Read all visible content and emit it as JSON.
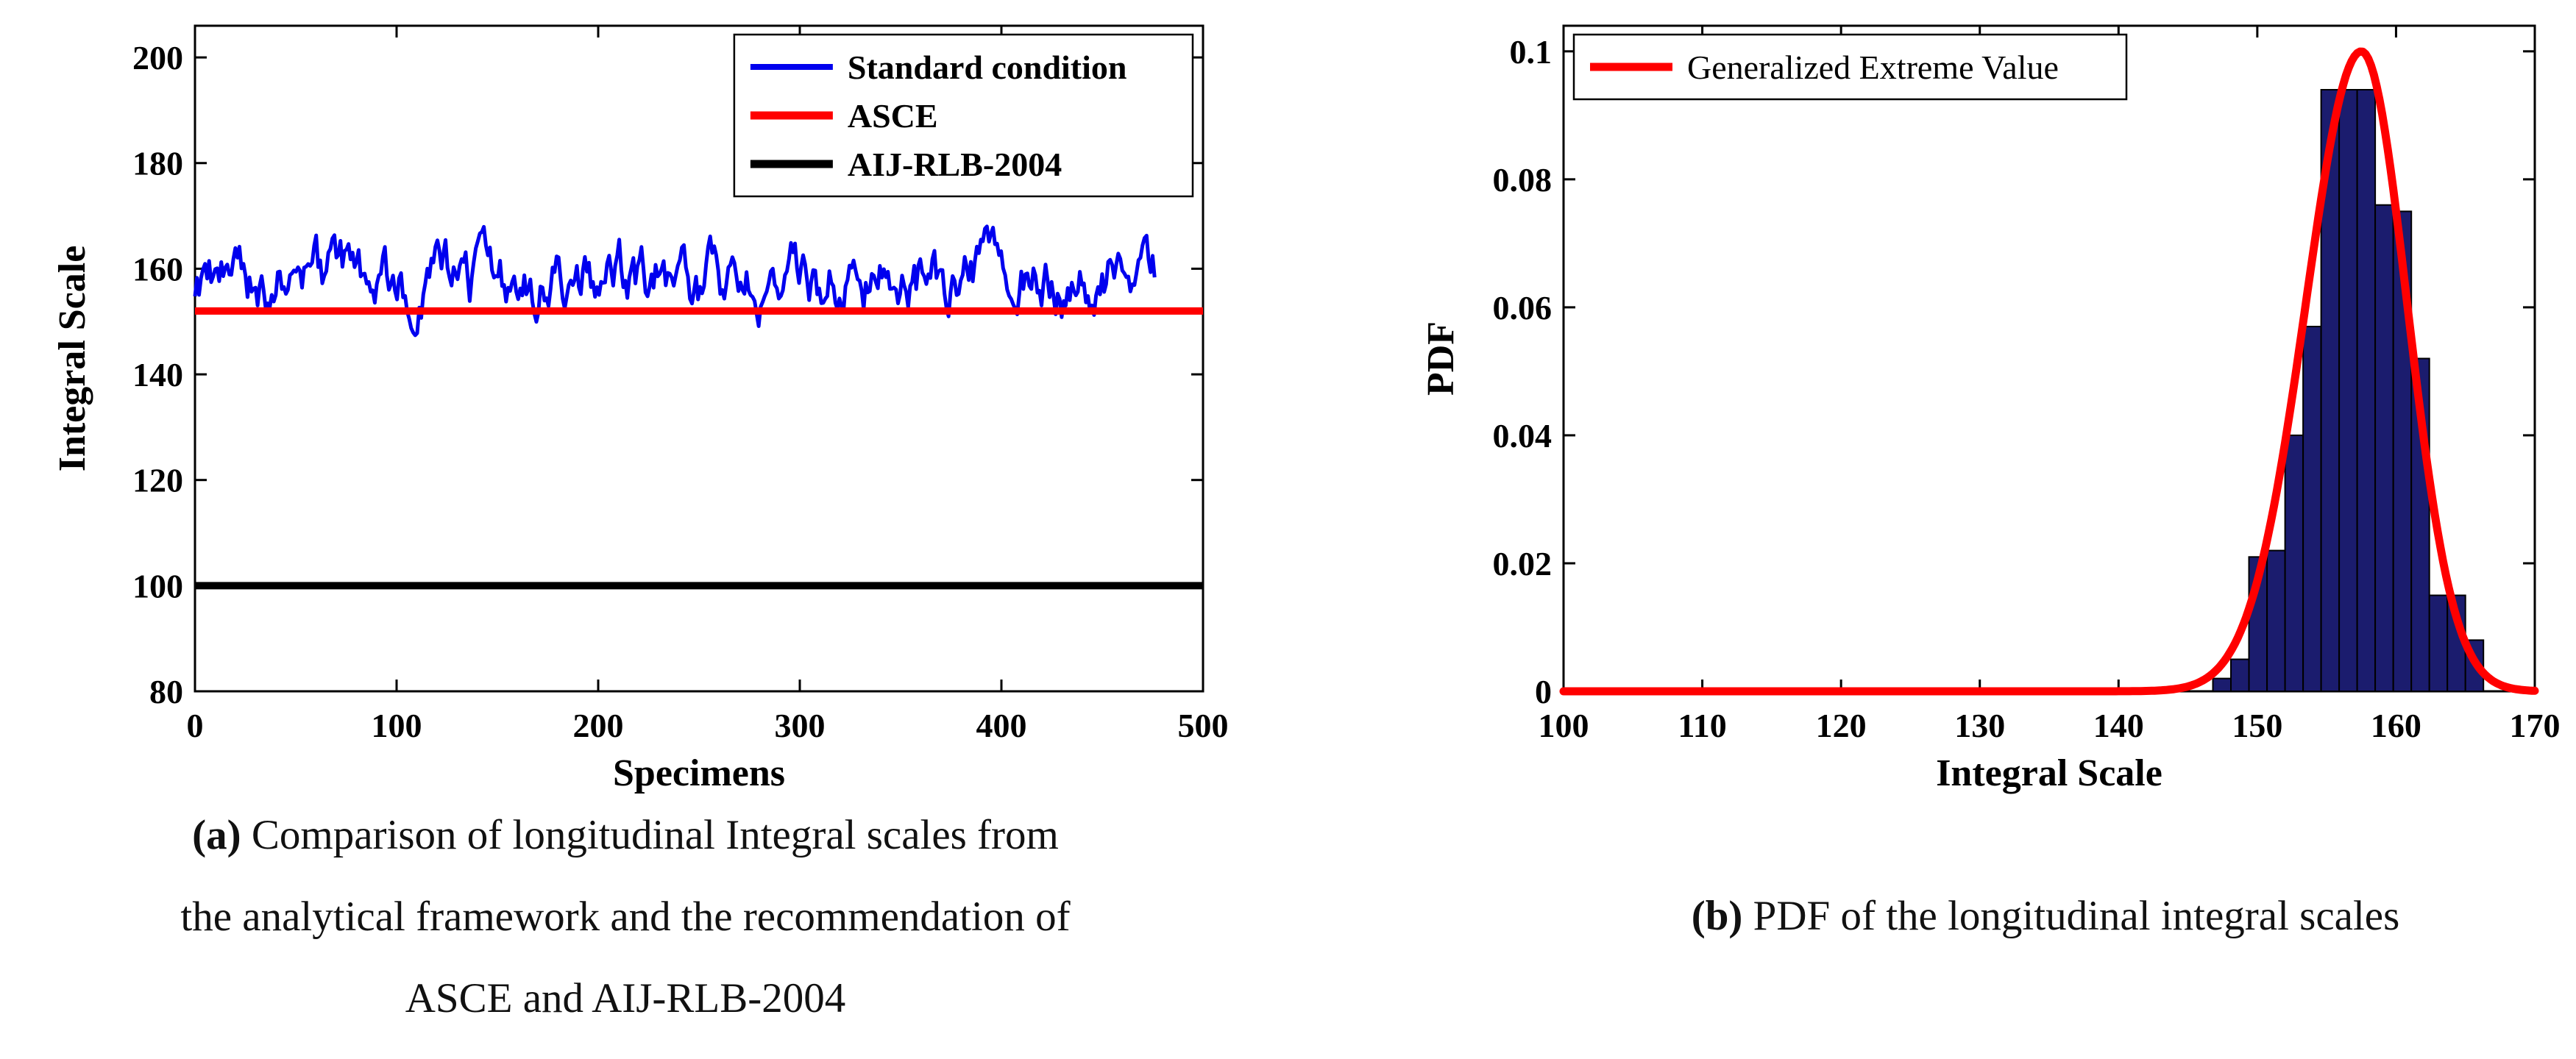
{
  "page": {
    "background": "#ffffff"
  },
  "figures": {
    "a": {
      "caption": {
        "prefix": "(a)",
        "lines": [
          "Comparison of longitudinal Integral scales from",
          "the analytical framework and the recommendation of",
          "ASCE and AIJ-RLB-2004"
        ]
      }
    },
    "b": {
      "caption": {
        "prefix": "(b)",
        "text": "PDF of the longitudinal integral scales"
      }
    }
  },
  "chart_data": [
    {
      "id": "chart-a",
      "type": "line",
      "title": "",
      "xlabel": "Specimens",
      "ylabel": "Integral Scale",
      "xlim": [
        0,
        500
      ],
      "ylim": [
        80,
        200
      ],
      "xticks": [
        0,
        100,
        200,
        300,
        400,
        500
      ],
      "xtick_labels": [
        "0",
        "100",
        "200",
        "300",
        "400",
        "500"
      ],
      "yticks": [
        80,
        100,
        120,
        140,
        160,
        180,
        200
      ],
      "ytick_labels": [
        "80",
        "100",
        "120",
        "140",
        "160",
        "180",
        "200"
      ],
      "grid": false,
      "legend": {
        "position": "top-right",
        "bold": true,
        "entries": [
          "Standard condition",
          "ASCE",
          "AIJ-RLB-2004"
        ]
      },
      "series": [
        {
          "name": "Standard condition",
          "kind": "noisy_line",
          "color": "#0000ee",
          "linewidth": 5,
          "n": 476,
          "x_end": 476,
          "seed": 9,
          "mean": 157.3,
          "approx_std": 4,
          "min": 146.5,
          "max": 168
        },
        {
          "name": "ASCE",
          "kind": "hline",
          "color": "#ff0000",
          "linewidth": 10,
          "y": 152
        },
        {
          "name": "AIJ-RLB-2004",
          "kind": "hline",
          "color": "#000000",
          "linewidth": 10,
          "y": 100
        }
      ]
    },
    {
      "id": "chart-b",
      "type": "histogram",
      "title": "",
      "xlabel": "Integral Scale",
      "ylabel": "PDF",
      "xlim": [
        100,
        170
      ],
      "ylim": [
        0,
        0.1
      ],
      "xticks": [
        100,
        110,
        120,
        130,
        140,
        150,
        160,
        170
      ],
      "xtick_labels": [
        "100",
        "110",
        "120",
        "130",
        "140",
        "150",
        "160",
        "170"
      ],
      "yticks": [
        0,
        0.02,
        0.04,
        0.06,
        0.08,
        0.1
      ],
      "ytick_labels": [
        "0",
        "0.02",
        "0.04",
        "0.06",
        "0.08",
        "0.1"
      ],
      "grid": false,
      "legend": {
        "position": "top-left",
        "bold": false,
        "entries": [
          "Generalized Extreme Value"
        ]
      },
      "histogram": {
        "color": "#1b1c6e",
        "edge_color": "#000000",
        "bin_width": 1.3,
        "bars": [
          {
            "x": 146.8,
            "h": 0.002
          },
          {
            "x": 148.1,
            "h": 0.005
          },
          {
            "x": 149.4,
            "h": 0.021
          },
          {
            "x": 150.7,
            "h": 0.022
          },
          {
            "x": 152.0,
            "h": 0.04
          },
          {
            "x": 153.3,
            "h": 0.057
          },
          {
            "x": 154.6,
            "h": 0.094
          },
          {
            "x": 155.9,
            "h": 0.094
          },
          {
            "x": 157.2,
            "h": 0.094
          },
          {
            "x": 158.5,
            "h": 0.076
          },
          {
            "x": 159.8,
            "h": 0.075
          },
          {
            "x": 161.1,
            "h": 0.052
          },
          {
            "x": 162.4,
            "h": 0.015
          },
          {
            "x": 163.7,
            "h": 0.015
          },
          {
            "x": 165.0,
            "h": 0.008
          }
        ]
      },
      "curve": {
        "name": "Generalized Extreme Value",
        "color": "#ff0000",
        "linewidth": 11,
        "peak_x": 157.5,
        "peak_y": 0.1,
        "sd_left": 4.0,
        "sd_right": 3.3
      }
    }
  ]
}
